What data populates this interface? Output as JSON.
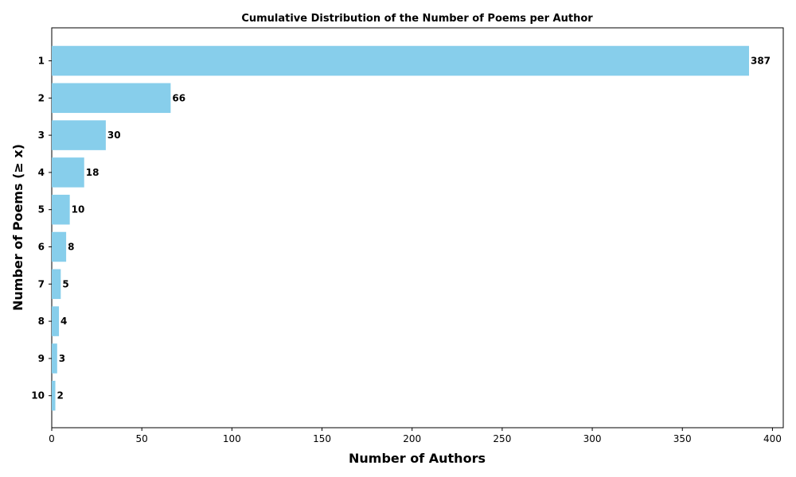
{
  "chart_data": {
    "type": "bar",
    "orientation": "horizontal",
    "title": "Cumulative Distribution of the Number of Poems per Author",
    "xlabel": "Number of Authors",
    "ylabel": "Number of Poems (≥ x)",
    "categories": [
      "1",
      "2",
      "3",
      "4",
      "5",
      "6",
      "7",
      "8",
      "9",
      "10"
    ],
    "values": [
      387,
      66,
      30,
      18,
      10,
      8,
      5,
      4,
      3,
      2
    ],
    "data_labels": [
      "387",
      "66",
      "30",
      "18",
      "10",
      "8",
      "5",
      "4",
      "3",
      "2"
    ],
    "xlim": [
      0,
      406
    ],
    "xticks": [
      0,
      50,
      100,
      150,
      200,
      250,
      300,
      350,
      400
    ],
    "bar_color": "#87CEEB",
    "grid": false,
    "legend": "none"
  }
}
